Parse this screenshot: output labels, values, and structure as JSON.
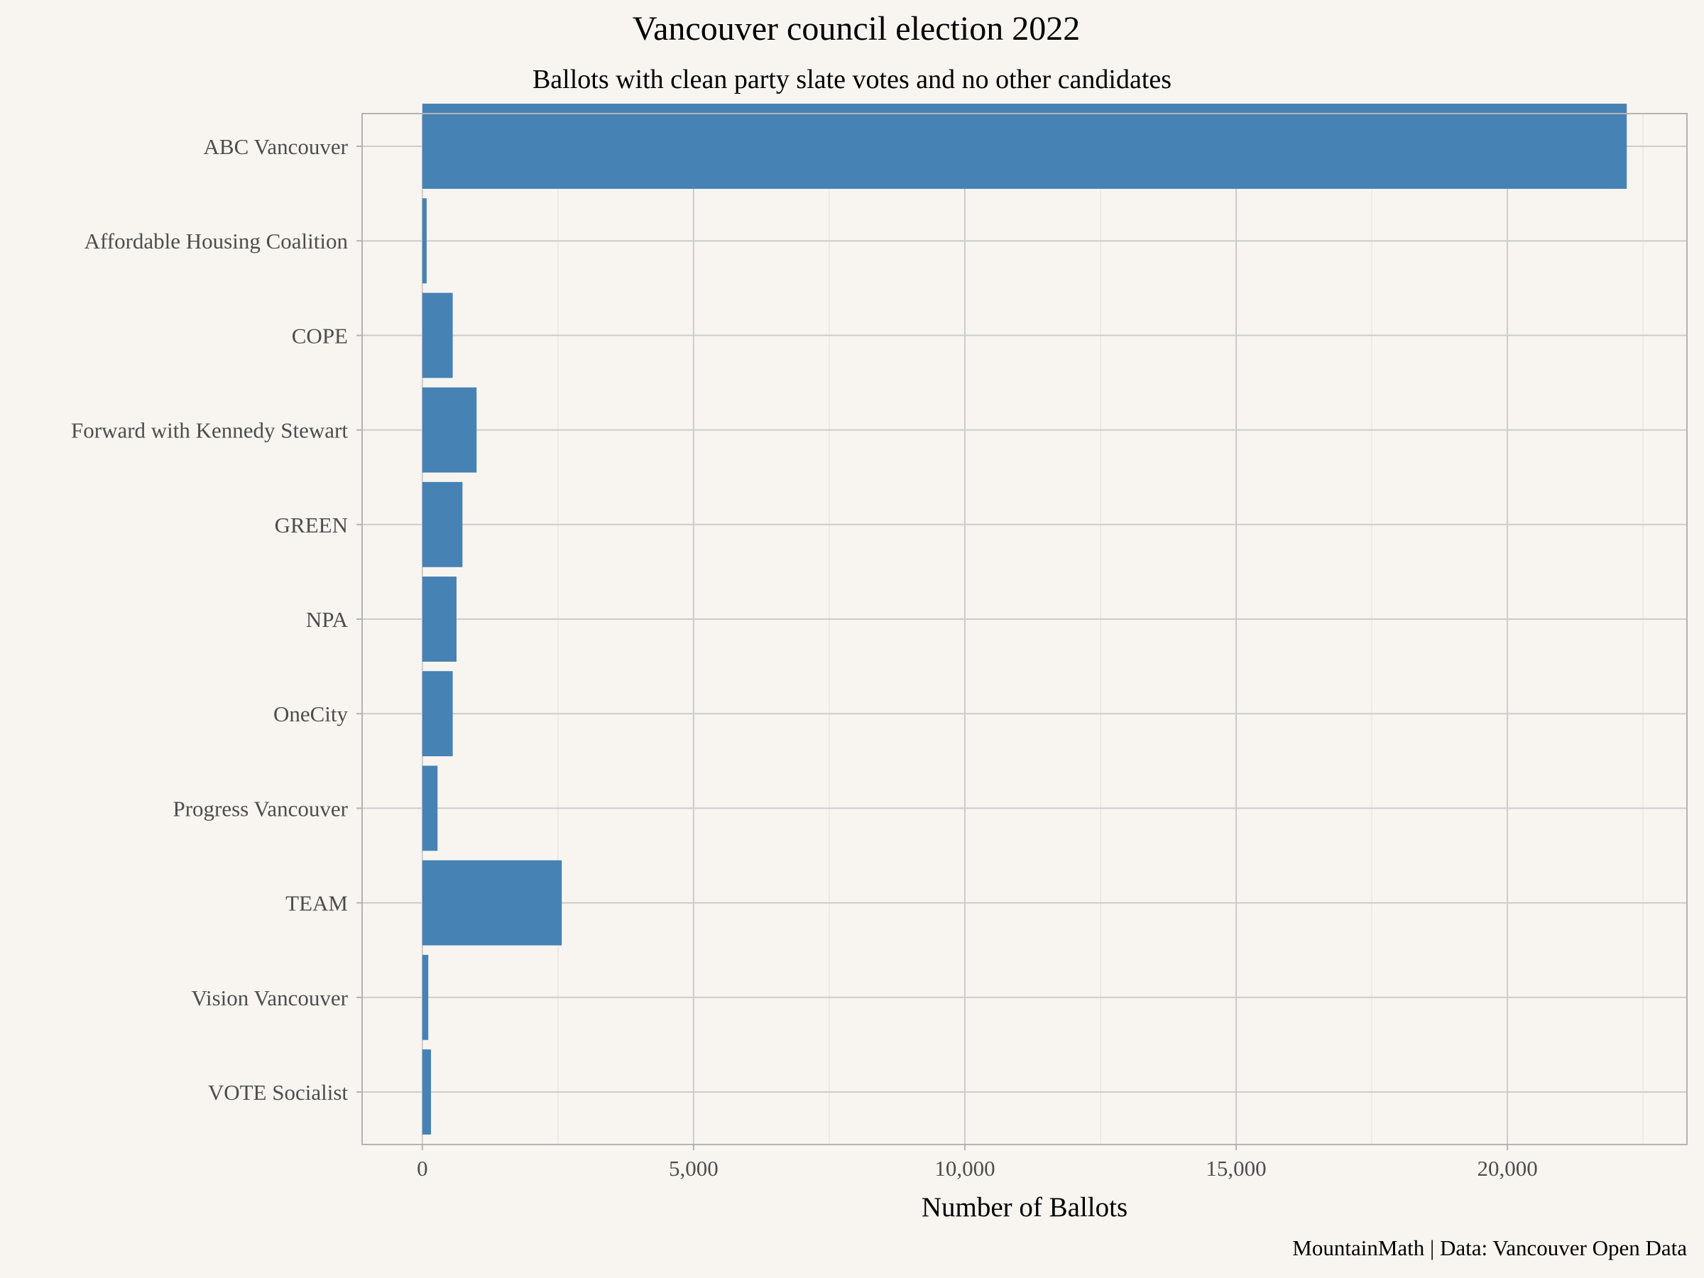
{
  "chart_data": {
    "type": "bar",
    "orientation": "horizontal",
    "title": "Vancouver council election 2022",
    "subtitle": "Ballots with clean party slate votes and no other candidates",
    "xlabel": "Number of Ballots",
    "ylabel": "",
    "caption": "MountainMath | Data: Vancouver Open Data",
    "categories": [
      "ABC Vancouver",
      "Affordable Housing Coalition",
      "COPE",
      "Forward with Kennedy Stewart",
      "GREEN",
      "NPA",
      "OneCity",
      "Progress Vancouver",
      "TEAM",
      "Vision Vancouver",
      "VOTE Socialist"
    ],
    "values": [
      22200,
      80,
      560,
      1000,
      740,
      630,
      560,
      280,
      2570,
      110,
      160
    ],
    "xlim": [
      -1110,
      23310
    ],
    "x_ticks": [
      0,
      5000,
      10000,
      15000,
      20000
    ],
    "x_tick_labels": [
      "0",
      "5,000",
      "10,000",
      "15,000",
      "20,000"
    ],
    "bar_color": "#4682b4",
    "panel_border_color": "#b3b3b3",
    "grid": true,
    "legend": "none"
  }
}
